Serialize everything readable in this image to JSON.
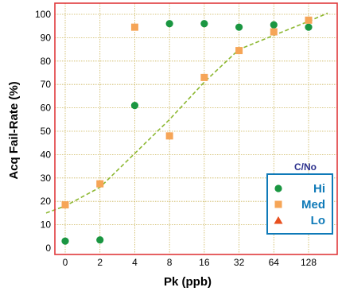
{
  "chart_data": {
    "type": "scatter",
    "xlabel": "Pk (ppb)",
    "ylabel": "Acq Fail-Rate (%)",
    "x_ticks": [
      "0",
      "2",
      "4",
      "8",
      "16",
      "32",
      "64",
      "128"
    ],
    "ylim": [
      0,
      100
    ],
    "y_ticks": [
      "0",
      "10",
      "20",
      "30",
      "40",
      "50",
      "60",
      "70",
      "80",
      "90",
      "100"
    ],
    "grid": true,
    "legend_position": "bottom-right",
    "legend_title": "C/No",
    "series": [
      {
        "name": "Hi",
        "marker": "circle",
        "color": "#1a9641",
        "points": [
          {
            "x": "0",
            "y": 3
          },
          {
            "x": "2",
            "y": 3.5
          },
          {
            "x": "4",
            "y": 61
          },
          {
            "x": "8",
            "y": 96
          },
          {
            "x": "16",
            "y": 96
          },
          {
            "x": "32",
            "y": 94.5
          },
          {
            "x": "64",
            "y": 95.5
          },
          {
            "x": "128",
            "y": 94.5
          }
        ]
      },
      {
        "name": "Med",
        "marker": "square",
        "color": "#f6a557",
        "points": [
          {
            "x": "0",
            "y": 18.5
          },
          {
            "x": "2",
            "y": 27.5
          },
          {
            "x": "4",
            "y": 94.5
          },
          {
            "x": "8",
            "y": 48
          },
          {
            "x": "16",
            "y": 73
          },
          {
            "x": "32",
            "y": 84.5
          },
          {
            "x": "64",
            "y": 92.5
          },
          {
            "x": "128",
            "y": 97.5
          }
        ]
      },
      {
        "name": "Lo",
        "marker": "triangle",
        "color": "#e8501f",
        "points": []
      }
    ],
    "trendline": {
      "color": "#8db832",
      "style": "dashed",
      "points": [
        {
          "x": -0.55,
          "y": 15
        },
        {
          "x": 0,
          "y": 18
        },
        {
          "x": 1,
          "y": 26
        },
        {
          "x": 3,
          "y": 55
        },
        {
          "x": 4,
          "y": 71
        },
        {
          "x": 5,
          "y": 85
        },
        {
          "x": 6,
          "y": 91
        },
        {
          "x": 7,
          "y": 97
        },
        {
          "x": 7.55,
          "y": 100.5
        }
      ]
    },
    "colors": {
      "frame": "#e0393b",
      "grid": "#cbb55a",
      "legend_border": "#0f7ab8",
      "legend_text": "#0f7ab8",
      "legend_title": "#2a2f8c"
    }
  }
}
